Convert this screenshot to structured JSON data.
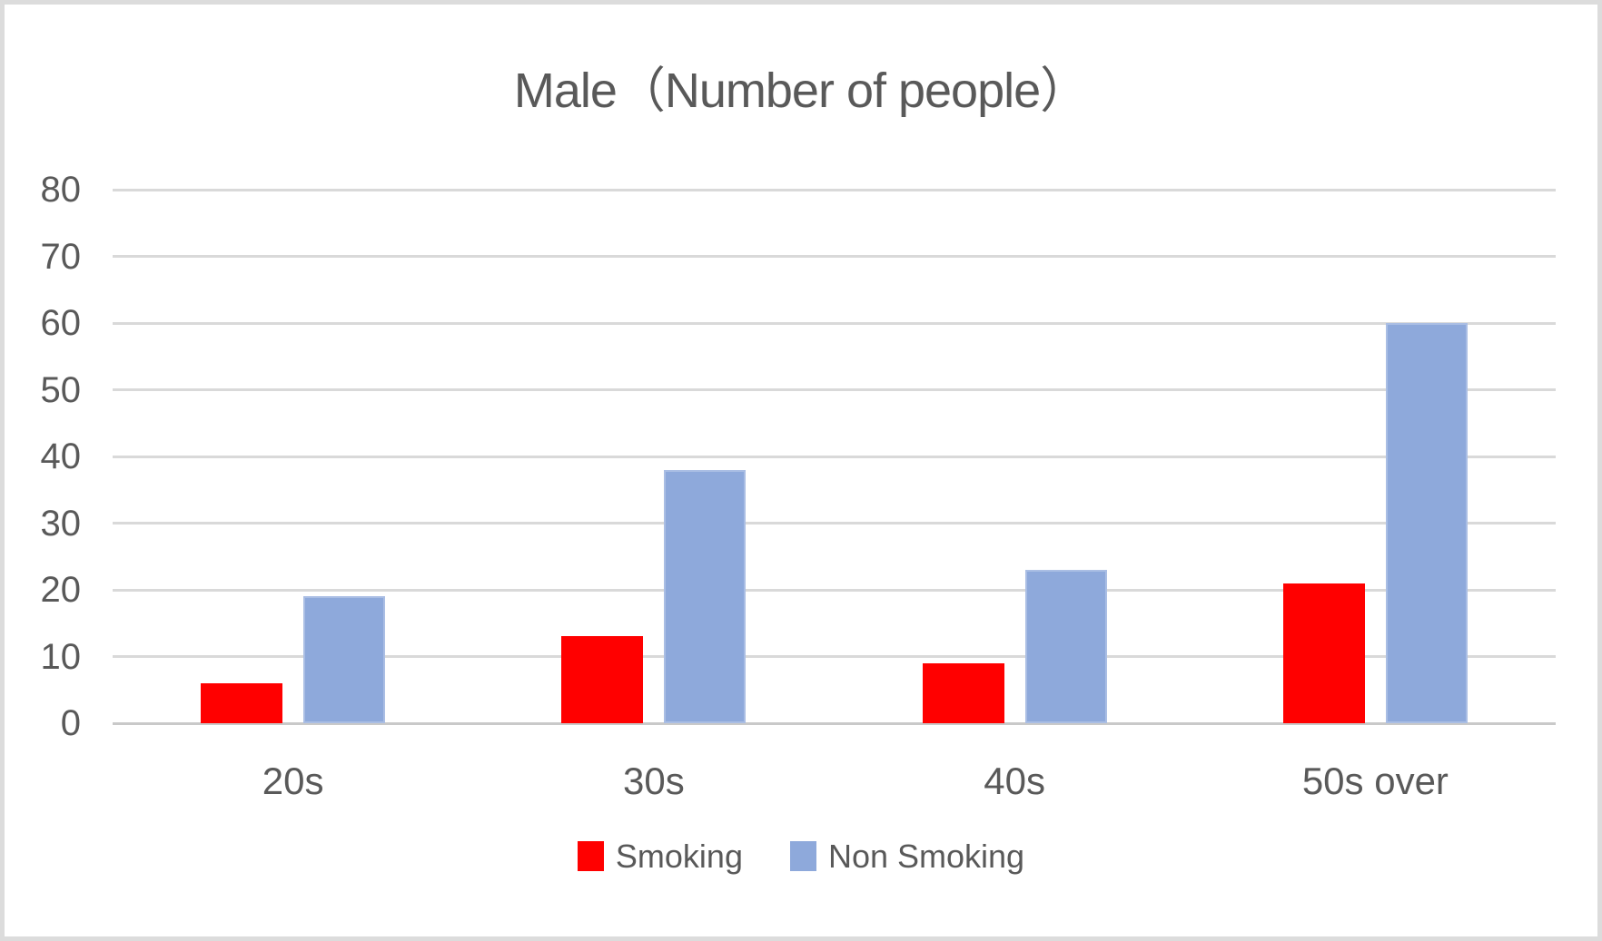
{
  "frame": {
    "border_color": "#dcdcdc",
    "background_color": "#ffffff",
    "text_color": "#595959",
    "gridline_color": "#d9d9d9",
    "axisline_color": "#c9c9c9"
  },
  "chart_data": {
    "type": "bar",
    "title": "Male（Number of people）",
    "categories": [
      "20s",
      "30s",
      "40s",
      "50s over"
    ],
    "series": [
      {
        "name": "Smoking",
        "color": "#ff0000",
        "values": [
          6,
          13,
          9,
          21
        ]
      },
      {
        "name": "Non Smoking",
        "color": "#8ea9db",
        "values": [
          19,
          38,
          23,
          60
        ]
      }
    ],
    "ylim": [
      0,
      80
    ],
    "ytick_step": 10,
    "yticks": [
      0,
      10,
      20,
      30,
      40,
      50,
      60,
      70,
      80
    ],
    "xlabel": "",
    "ylabel": "",
    "grid": true,
    "legend_position": "bottom"
  }
}
